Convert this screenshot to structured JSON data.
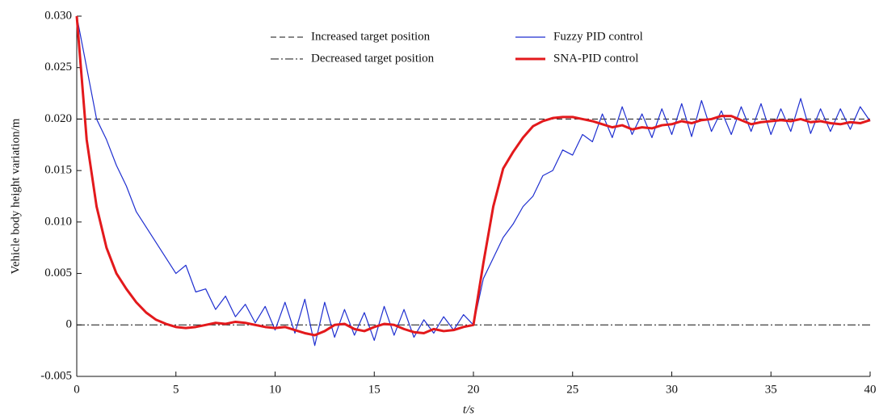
{
  "chart_data": {
    "type": "line",
    "xlabel": "t/s",
    "ylabel": "Vehicle body height variation/m",
    "x": [
      0,
      0.5,
      1,
      1.5,
      2,
      2.5,
      3,
      3.5,
      4,
      4.5,
      5,
      5.5,
      6,
      6.5,
      7,
      7.5,
      8,
      8.5,
      9,
      9.5,
      10,
      10.5,
      11,
      11.5,
      12,
      12.5,
      13,
      13.5,
      14,
      14.5,
      15,
      15.5,
      16,
      16.5,
      17,
      17.5,
      18,
      18.5,
      19,
      19.5,
      20,
      20.5,
      21,
      21.5,
      22,
      22.5,
      23,
      23.5,
      24,
      24.5,
      25,
      25.5,
      26,
      26.5,
      27,
      27.5,
      28,
      28.5,
      29,
      29.5,
      30,
      30.5,
      31,
      31.5,
      32,
      32.5,
      33,
      33.5,
      34,
      34.5,
      35,
      35.5,
      36,
      36.5,
      37,
      37.5,
      38,
      38.5,
      39,
      39.5,
      40
    ],
    "reference_lines": [
      {
        "name": "Increased target position",
        "value": 0.02,
        "style": "dashed",
        "color": "#111111"
      },
      {
        "name": "Decreased target position",
        "value": 0,
        "style": "dashdot",
        "color": "#111111"
      }
    ],
    "series": [
      {
        "name": "Fuzzy PID control",
        "color": "#1f2fd0",
        "width": 1.2,
        "values": [
          0.03,
          0.025,
          0.02,
          0.018,
          0.0155,
          0.0135,
          0.011,
          0.0095,
          0.008,
          0.0065,
          0.005,
          0.0058,
          0.0032,
          0.0035,
          0.0015,
          0.0028,
          0.0008,
          0.002,
          0.0002,
          0.0018,
          -0.0005,
          0.0022,
          -0.0008,
          0.0025,
          -0.002,
          0.0022,
          -0.0012,
          0.0015,
          -0.001,
          0.0012,
          -0.0015,
          0.0018,
          -0.001,
          0.0015,
          -0.0012,
          0.0005,
          -0.0008,
          0.0008,
          -0.0005,
          0.001,
          0,
          0.0045,
          0.0065,
          0.0085,
          0.0098,
          0.0115,
          0.0125,
          0.0145,
          0.015,
          0.017,
          0.0165,
          0.0185,
          0.0178,
          0.0205,
          0.0182,
          0.0212,
          0.0185,
          0.0205,
          0.0182,
          0.021,
          0.0185,
          0.0215,
          0.0183,
          0.0218,
          0.0188,
          0.0208,
          0.0185,
          0.0212,
          0.0188,
          0.0215,
          0.0185,
          0.021,
          0.0188,
          0.022,
          0.0186,
          0.021,
          0.0188,
          0.021,
          0.019,
          0.0212,
          0.0198
        ]
      },
      {
        "name": "SNA-PID control",
        "color": "#e3191c",
        "width": 3,
        "values": [
          0.03,
          0.018,
          0.0115,
          0.0075,
          0.005,
          0.0035,
          0.0022,
          0.0012,
          0.0005,
          0.0001,
          -0.0002,
          -0.0003,
          -0.0002,
          0,
          0.0002,
          0.0001,
          0.0003,
          0.0002,
          0,
          -0.0002,
          -0.0003,
          -0.0002,
          -0.0005,
          -0.0008,
          -0.001,
          -0.0006,
          0,
          0.0001,
          -0.0004,
          -0.0006,
          -0.0002,
          0.0001,
          0,
          -0.0004,
          -0.0007,
          -0.0008,
          -0.0004,
          -0.0006,
          -0.0005,
          -0.0002,
          0,
          0.006,
          0.0115,
          0.0152,
          0.0168,
          0.0182,
          0.0193,
          0.0198,
          0.0201,
          0.0202,
          0.0202,
          0.02,
          0.0198,
          0.0195,
          0.0192,
          0.0194,
          0.019,
          0.0192,
          0.0191,
          0.0194,
          0.0195,
          0.0198,
          0.0196,
          0.0199,
          0.02,
          0.0203,
          0.0203,
          0.0199,
          0.0195,
          0.0197,
          0.0198,
          0.0199,
          0.0198,
          0.02,
          0.0197,
          0.0198,
          0.0196,
          0.0195,
          0.0197,
          0.0196,
          0.0199
        ]
      }
    ],
    "xlim": [
      0,
      40
    ],
    "xticks": [
      0,
      5,
      10,
      15,
      20,
      25,
      30,
      35,
      40
    ],
    "ylim": [
      -0.005,
      0.03
    ],
    "yticks": [
      {
        "value": 0.03,
        "label": "0.030"
      },
      0.025,
      {
        "value": 0.02,
        "label": "0.020"
      },
      0.015,
      {
        "value": 0.01,
        "label": "0.010"
      },
      0.005,
      0,
      -0.005
    ]
  }
}
